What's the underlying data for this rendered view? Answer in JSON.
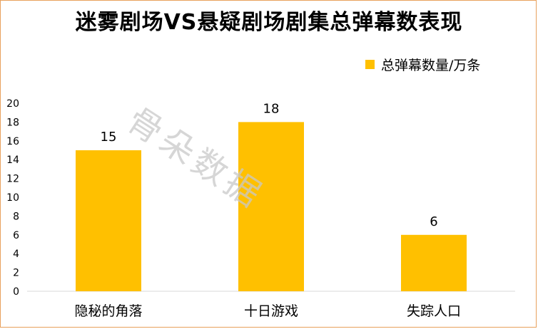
{
  "chart_data": {
    "type": "bar",
    "title": "迷雾剧场VS悬疑剧场剧集总弹幕数表现",
    "categories": [
      "隐秘的角落",
      "十日游戏",
      "失踪人口"
    ],
    "series": [
      {
        "name": "总弹幕数量/万条",
        "values": [
          15,
          18,
          6
        ]
      }
    ],
    "data_labels": [
      "15",
      "18",
      "6"
    ],
    "ylim": [
      0,
      20
    ],
    "yticks": [
      0,
      2,
      4,
      6,
      8,
      10,
      12,
      14,
      16,
      18,
      20
    ],
    "grid": false,
    "legend_position": "top-right",
    "bar_color": "#ffc000"
  },
  "watermark": "骨朵数据"
}
